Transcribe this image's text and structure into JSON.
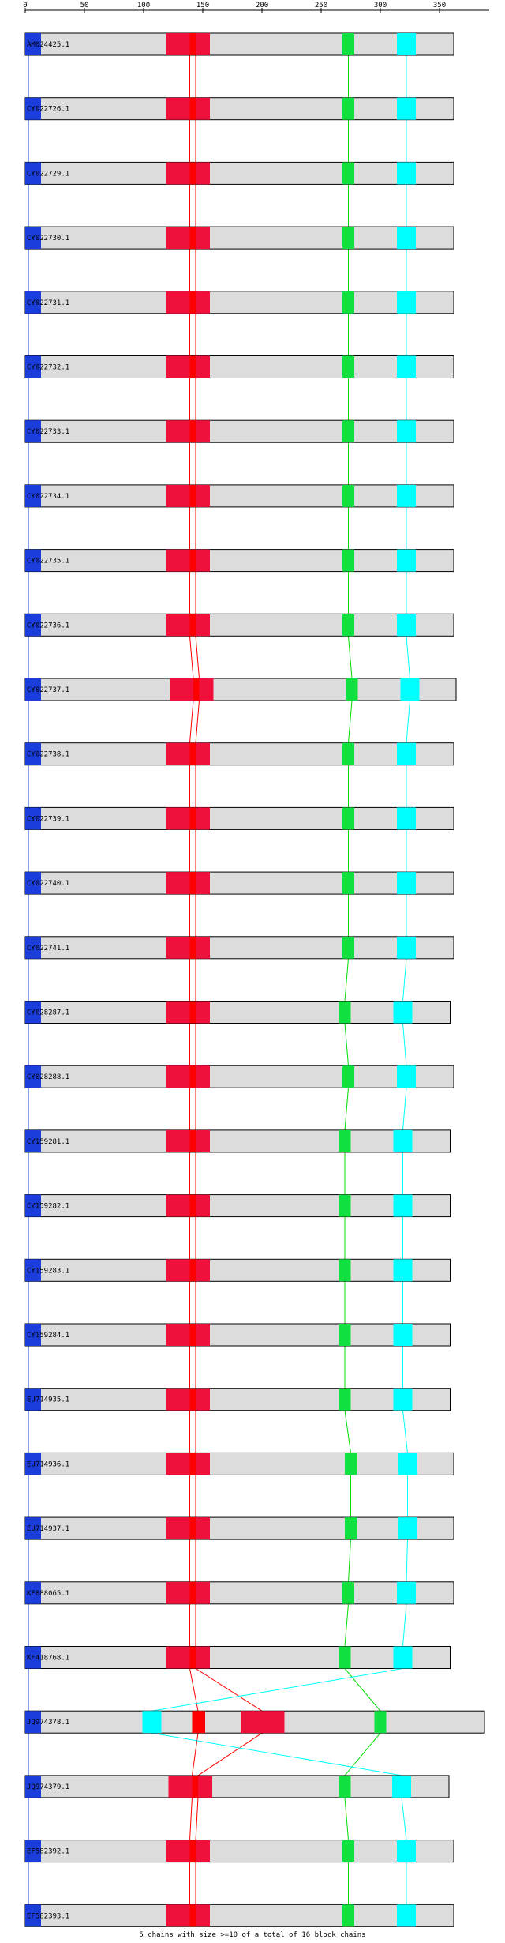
{
  "axis": {
    "ticks": [
      {
        "value": 0,
        "label": "0"
      },
      {
        "value": 50,
        "label": "50"
      },
      {
        "value": 100,
        "label": "100"
      },
      {
        "value": 150,
        "label": "150"
      },
      {
        "value": 200,
        "label": "200"
      },
      {
        "value": 250,
        "label": "250"
      },
      {
        "value": 300,
        "label": "300"
      },
      {
        "value": 350,
        "label": "350"
      }
    ],
    "max": 392
  },
  "colors": {
    "bar_fill": "#dcdcdc",
    "bar_stroke": "#000000",
    "anchor_blue": "#1a3ddc",
    "red_block": "#f0103c",
    "red_core": "#ff0000",
    "green_block": "#10e040",
    "cyan_block": "#00ffff",
    "link_red": "#ff0000",
    "link_green": "#00dd00",
    "link_cyan": "#00ffff",
    "link_blue": "#1a3ddc"
  },
  "footer": {
    "text": "5 chains with size >=10 of a total of 16 block chains"
  },
  "sequences": [
    {
      "id": "AM024425.1",
      "length": 362,
      "red": [
        119,
        156
      ],
      "green": [
        268,
        278
      ],
      "cyan": [
        314,
        330
      ]
    },
    {
      "id": "CY022726.1",
      "length": 362,
      "red": [
        119,
        156
      ],
      "green": [
        268,
        278
      ],
      "cyan": [
        314,
        330
      ]
    },
    {
      "id": "CY022729.1",
      "length": 362,
      "red": [
        119,
        156
      ],
      "green": [
        268,
        278
      ],
      "cyan": [
        314,
        330
      ]
    },
    {
      "id": "CY022730.1",
      "length": 362,
      "red": [
        119,
        156
      ],
      "green": [
        268,
        278
      ],
      "cyan": [
        314,
        330
      ]
    },
    {
      "id": "CY022731.1",
      "length": 362,
      "red": [
        119,
        156
      ],
      "green": [
        268,
        278
      ],
      "cyan": [
        314,
        330
      ]
    },
    {
      "id": "CY022732.1",
      "length": 362,
      "red": [
        119,
        156
      ],
      "green": [
        268,
        278
      ],
      "cyan": [
        314,
        330
      ]
    },
    {
      "id": "CY022733.1",
      "length": 362,
      "red": [
        119,
        156
      ],
      "green": [
        268,
        278
      ],
      "cyan": [
        314,
        330
      ]
    },
    {
      "id": "CY022734.1",
      "length": 362,
      "red": [
        119,
        156
      ],
      "green": [
        268,
        278
      ],
      "cyan": [
        314,
        330
      ]
    },
    {
      "id": "CY022735.1",
      "length": 362,
      "red": [
        119,
        156
      ],
      "green": [
        268,
        278
      ],
      "cyan": [
        314,
        330
      ]
    },
    {
      "id": "CY022736.1",
      "length": 362,
      "red": [
        119,
        156
      ],
      "green": [
        268,
        278
      ],
      "cyan": [
        314,
        330
      ]
    },
    {
      "id": "CY022737.1",
      "length": 364,
      "red": [
        122,
        159
      ],
      "green": [
        271,
        281
      ],
      "cyan": [
        317,
        333
      ]
    },
    {
      "id": "CY022738.1",
      "length": 362,
      "red": [
        119,
        156
      ],
      "green": [
        268,
        278
      ],
      "cyan": [
        314,
        330
      ]
    },
    {
      "id": "CY022739.1",
      "length": 362,
      "red": [
        119,
        156
      ],
      "green": [
        268,
        278
      ],
      "cyan": [
        314,
        330
      ]
    },
    {
      "id": "CY022740.1",
      "length": 362,
      "red": [
        119,
        156
      ],
      "green": [
        268,
        278
      ],
      "cyan": [
        314,
        330
      ]
    },
    {
      "id": "CY022741.1",
      "length": 362,
      "red": [
        119,
        156
      ],
      "green": [
        268,
        278
      ],
      "cyan": [
        314,
        330
      ]
    },
    {
      "id": "CY028287.1",
      "length": 359,
      "red": [
        119,
        156
      ],
      "green": [
        265,
        275
      ],
      "cyan": [
        311,
        327
      ]
    },
    {
      "id": "CY028288.1",
      "length": 362,
      "red": [
        119,
        156
      ],
      "green": [
        268,
        278
      ],
      "cyan": [
        314,
        330
      ]
    },
    {
      "id": "CY159281.1",
      "length": 359,
      "red": [
        119,
        156
      ],
      "green": [
        265,
        275
      ],
      "cyan": [
        311,
        327
      ]
    },
    {
      "id": "CY159282.1",
      "length": 359,
      "red": [
        119,
        156
      ],
      "green": [
        265,
        275
      ],
      "cyan": [
        311,
        327
      ]
    },
    {
      "id": "CY159283.1",
      "length": 359,
      "red": [
        119,
        156
      ],
      "green": [
        265,
        275
      ],
      "cyan": [
        311,
        327
      ]
    },
    {
      "id": "CY159284.1",
      "length": 359,
      "red": [
        119,
        156
      ],
      "green": [
        265,
        275
      ],
      "cyan": [
        311,
        327
      ]
    },
    {
      "id": "EU714935.1",
      "length": 359,
      "red": [
        119,
        156
      ],
      "green": [
        265,
        275
      ],
      "cyan": [
        311,
        327
      ]
    },
    {
      "id": "EU714936.1",
      "length": 362,
      "red": [
        119,
        156
      ],
      "green": [
        270,
        280
      ],
      "cyan": [
        315,
        331
      ]
    },
    {
      "id": "EU714937.1",
      "length": 362,
      "red": [
        119,
        156
      ],
      "green": [
        270,
        280
      ],
      "cyan": [
        315,
        331
      ]
    },
    {
      "id": "KF088065.1",
      "length": 362,
      "red": [
        119,
        156
      ],
      "green": [
        268,
        278
      ],
      "cyan": [
        314,
        330
      ]
    },
    {
      "id": "KF418768.1",
      "length": 359,
      "red": [
        119,
        156
      ],
      "green": [
        265,
        275
      ],
      "cyan": [
        311,
        327
      ]
    },
    {
      "id": "JQ974378.1",
      "length": 388,
      "red": [
        141,
        152
      ],
      "red2": [
        182,
        219
      ],
      "green": [
        295,
        305
      ],
      "cyan": [
        99,
        115
      ],
      "special": true
    },
    {
      "id": "JQ974379.1",
      "length": 358,
      "red": [
        121,
        158
      ],
      "green": [
        265,
        275
      ],
      "cyan": [
        310,
        326
      ]
    },
    {
      "id": "EF582392.1",
      "length": 362,
      "red": [
        119,
        156
      ],
      "green": [
        268,
        278
      ],
      "cyan": [
        314,
        330
      ]
    },
    {
      "id": "EF582393.1",
      "length": 362,
      "red": [
        119,
        156
      ],
      "green": [
        268,
        278
      ],
      "cyan": [
        314,
        330
      ]
    }
  ]
}
